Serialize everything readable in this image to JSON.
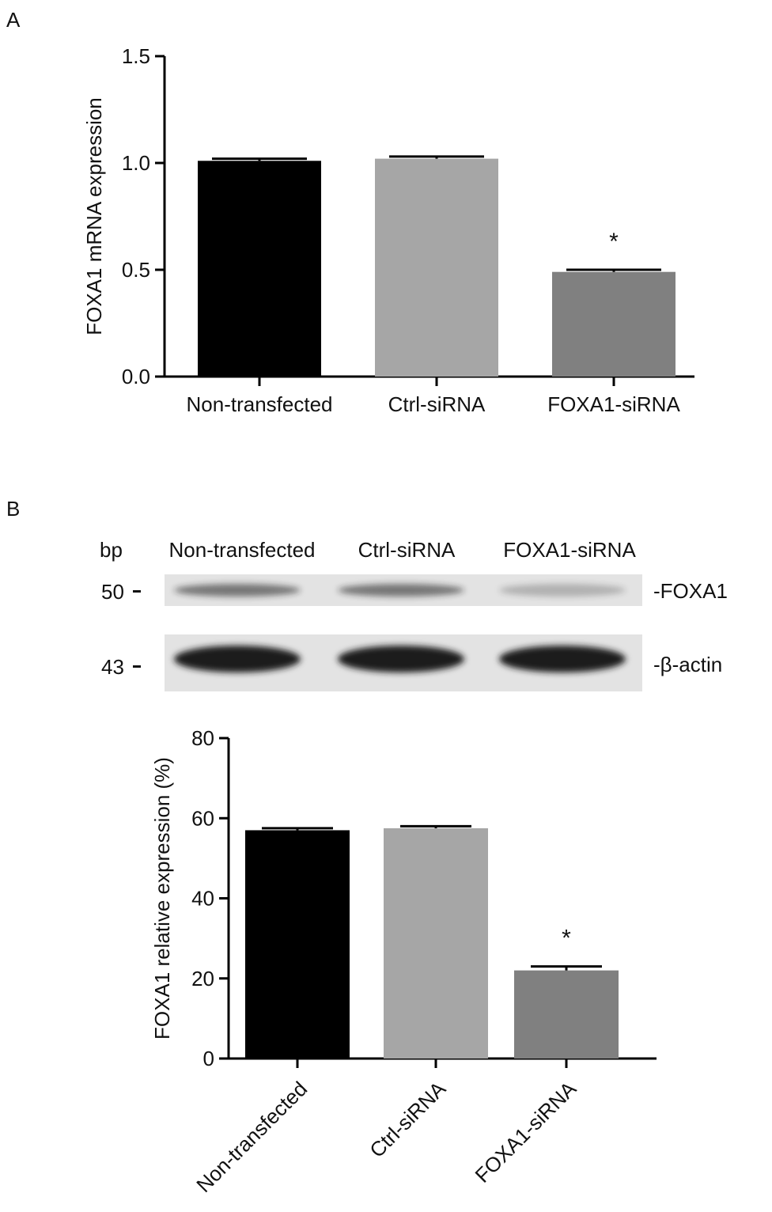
{
  "panel_a": {
    "label": "A"
  },
  "panel_b": {
    "label": "B",
    "blot": {
      "marker_header": "bp",
      "lane_labels": [
        "Non-transfected",
        "Ctrl-siRNA",
        "FOXA1-siRNA"
      ],
      "rows": [
        {
          "marker": "50",
          "name": "-FOXA1",
          "band_intensity": [
            0.55,
            0.55,
            0.25
          ]
        },
        {
          "marker": "43",
          "name": "-β-actin",
          "band_intensity": [
            1.0,
            1.0,
            1.0
          ]
        }
      ]
    }
  },
  "colors": {
    "non_transfected": "#000000",
    "ctrl": "#a6a6a6",
    "foxa1": "#808080",
    "axis": "#000000",
    "blot_bg": "#e3e3e3",
    "band": "#1c1c1c"
  },
  "chart_data": [
    {
      "type": "bar",
      "categories": [
        "Non-transfected",
        "Ctrl-siRNA",
        "FOXA1-siRNA"
      ],
      "values": [
        1.01,
        1.02,
        0.49
      ],
      "errors": [
        0.01,
        0.01,
        0.01
      ],
      "bar_colors": [
        "#000000",
        "#a6a6a6",
        "#808080"
      ],
      "annotations": [
        "",
        "",
        "*"
      ],
      "title": "",
      "xlabel": "",
      "ylabel": "FOXA1 mRNA expression",
      "ylim": [
        0,
        1.5
      ],
      "yticks": [
        "0.0",
        "0.5",
        "1.0",
        "1.5"
      ],
      "ytick_values": [
        0,
        0.5,
        1.0,
        1.5
      ],
      "grid": false,
      "xtick_rotation": 0
    },
    {
      "type": "bar",
      "categories": [
        "Non-transfected",
        "Ctrl-siRNA",
        "FOXA1-siRNA"
      ],
      "values": [
        57,
        57.5,
        22
      ],
      "errors": [
        0.5,
        0.5,
        1
      ],
      "bar_colors": [
        "#000000",
        "#a6a6a6",
        "#808080"
      ],
      "annotations": [
        "",
        "",
        "*"
      ],
      "title": "",
      "xlabel": "",
      "ylabel": "FOXA1 relative expression (%)",
      "ylim": [
        0,
        80
      ],
      "yticks": [
        "0",
        "20",
        "40",
        "60",
        "80"
      ],
      "ytick_values": [
        0,
        20,
        40,
        60,
        80
      ],
      "grid": false,
      "xtick_rotation": -45
    }
  ]
}
